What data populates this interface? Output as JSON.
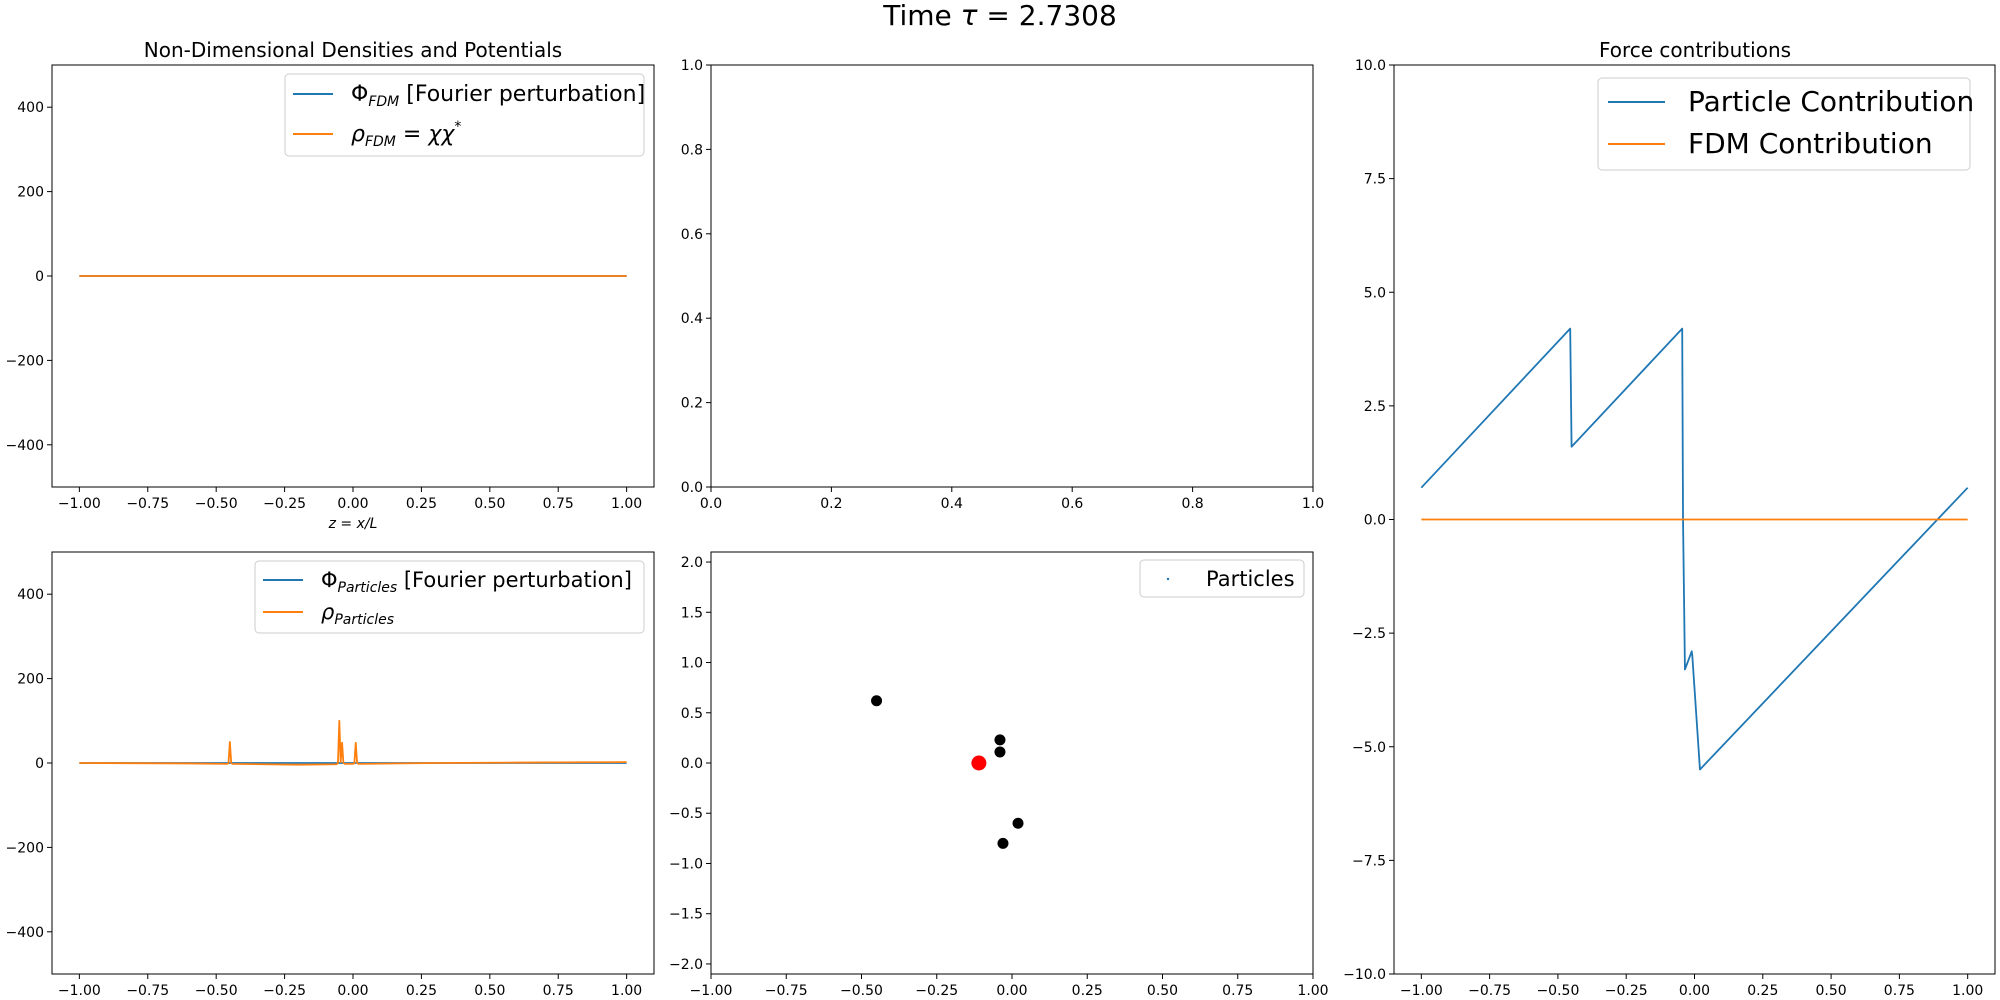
{
  "figure": {
    "suptitle": "Time τ = 2.7308",
    "suptitle_prefix": "Time ",
    "suptitle_symbol": "τ",
    "suptitle_value": " = 2.7308"
  },
  "colors": {
    "blue": "#1f77b4",
    "orange": "#ff7f0e",
    "red": "#ff0000",
    "black": "#000000"
  },
  "chart_data": [
    {
      "id": "fdm",
      "type": "line",
      "title": "Non-Dimensional Densities and Potentials",
      "xlabel": "z = x/L",
      "ylabel": "",
      "xlim": [
        -1.1,
        1.1
      ],
      "ylim": [
        -500,
        500
      ],
      "xticks": [
        -1.0,
        -0.75,
        -0.5,
        -0.25,
        0.0,
        0.25,
        0.5,
        0.75,
        1.0
      ],
      "yticks": [
        -400,
        -200,
        0,
        200,
        400
      ],
      "grid": false,
      "legend": "top-right",
      "series": [
        {
          "name": "Φ_FDM [Fourier perturbation]",
          "color": "#1f77b4",
          "x": [
            -1.0,
            1.0
          ],
          "y": [
            0,
            0
          ]
        },
        {
          "name": "ρ_FDM = χχ*",
          "color": "#ff7f0e",
          "x": [
            -1.0,
            1.0
          ],
          "y": [
            0,
            0
          ]
        }
      ]
    },
    {
      "id": "empty",
      "type": "line",
      "title": "",
      "xlim": [
        0,
        1
      ],
      "ylim": [
        0,
        1
      ],
      "xticks": [
        0.0,
        0.2,
        0.4,
        0.6,
        0.8,
        1.0
      ],
      "yticks": [
        0.0,
        0.2,
        0.4,
        0.6,
        0.8,
        1.0
      ],
      "grid": false,
      "series": []
    },
    {
      "id": "particles_density",
      "type": "line",
      "title": "",
      "xlim": [
        -1.1,
        1.1
      ],
      "ylim": [
        -500,
        500
      ],
      "xticks": [
        -1.0,
        -0.75,
        -0.5,
        -0.25,
        0.0,
        0.25,
        0.5,
        0.75,
        1.0
      ],
      "yticks": [
        -400,
        -200,
        0,
        200,
        400
      ],
      "grid": false,
      "legend": "top-right",
      "series": [
        {
          "name": "Φ_Particles [Fourier perturbation]",
          "color": "#1f77b4",
          "x": [
            -1.0,
            1.0
          ],
          "y": [
            0,
            0
          ]
        },
        {
          "name": "ρ_Particles",
          "color": "#ff7f0e",
          "x": [
            -1.0,
            -0.6,
            -0.46,
            -0.455,
            -0.45,
            -0.445,
            -0.44,
            -0.2,
            -0.06,
            -0.055,
            -0.05,
            -0.045,
            -0.04,
            -0.035,
            -0.03,
            0.0,
            0.005,
            0.01,
            0.015,
            0.02,
            0.025,
            0.03,
            0.3,
            0.6,
            1.0
          ],
          "y": [
            0,
            -1,
            -2,
            0,
            50,
            0,
            -2,
            -4,
            -3,
            0,
            100,
            2,
            48,
            0,
            -2,
            -2,
            0,
            48,
            0,
            -2,
            -2,
            -2,
            0,
            1,
            2
          ]
        }
      ]
    },
    {
      "id": "phase_space",
      "type": "scatter",
      "title": "",
      "xlim": [
        -1.0,
        1.0
      ],
      "ylim": [
        -2.1,
        2.1
      ],
      "xticks": [
        -1.0,
        -0.75,
        -0.5,
        -0.25,
        0.0,
        0.25,
        0.5,
        0.75,
        1.0
      ],
      "yticks": [
        -2.0,
        -1.5,
        -1.0,
        -0.5,
        0.0,
        0.5,
        1.0,
        1.5,
        2.0
      ],
      "grid": false,
      "legend": "top-right",
      "series": [
        {
          "name": "Particles",
          "color": "#000000",
          "points": [
            [
              -0.45,
              0.62
            ],
            [
              -0.04,
              0.23
            ],
            [
              -0.04,
              0.11
            ],
            [
              0.02,
              -0.6
            ],
            [
              -0.03,
              -0.8
            ]
          ]
        },
        {
          "name": "",
          "color": "#ff0000",
          "points": [
            [
              -0.11,
              0.0
            ]
          ]
        }
      ]
    },
    {
      "id": "forces",
      "type": "line",
      "title": "Force contributions",
      "xlim": [
        -1.1,
        1.1
      ],
      "ylim": [
        -10.0,
        10.0
      ],
      "xticks": [
        -1.0,
        -0.75,
        -0.5,
        -0.25,
        0.0,
        0.25,
        0.5,
        0.75,
        1.0
      ],
      "yticks": [
        -10.0,
        -7.5,
        -5.0,
        -2.5,
        0.0,
        2.5,
        5.0,
        7.5,
        10.0
      ],
      "grid": false,
      "legend": "top-right",
      "series": [
        {
          "name": "Particle Contribution",
          "color": "#1f77b4",
          "x": [
            -1.0,
            -0.455,
            -0.45,
            -0.045,
            -0.042,
            -0.035,
            -0.01,
            -0.008,
            0.02,
            1.0
          ],
          "y": [
            0.7,
            4.2,
            1.6,
            4.2,
            0.0,
            -3.3,
            -2.9,
            -3.0,
            -5.5,
            0.7
          ]
        },
        {
          "name": "FDM Contribution",
          "color": "#ff7f0e",
          "x": [
            -1.0,
            1.0
          ],
          "y": [
            0.0,
            0.0
          ]
        }
      ]
    }
  ]
}
